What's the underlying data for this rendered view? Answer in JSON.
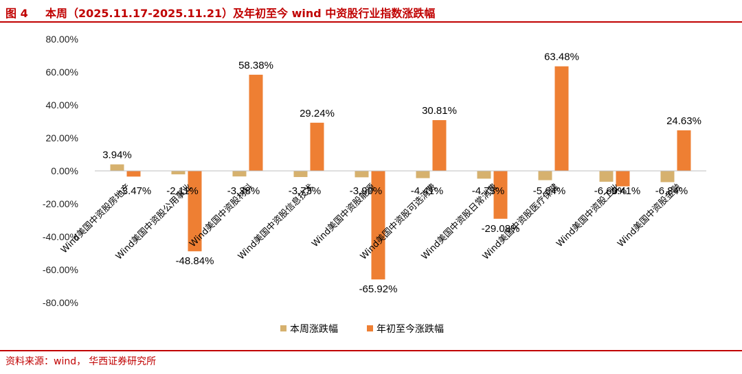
{
  "header": {
    "figure_number": "图 4",
    "title": "本周（2025.11.17-2025.11.21）及年初至今 wind 中资股行业指数涨跌幅"
  },
  "footer": {
    "source_label": "资料来源：wind，",
    "source_value": "华西证券研究所"
  },
  "colors": {
    "weekly": "#d6b16e",
    "ytd": "#ee7f33",
    "accent": "#c00000"
  },
  "chart_data": {
    "type": "bar",
    "categories": [
      "Wind美国中资股房地产",
      "Wind美国中资股公用事业",
      "Wind美国中资股材料",
      "Wind美国中资股信息技术",
      "Wind美国中资股能源",
      "Wind美国中资股可选消费",
      "Wind美国中资股日常消费",
      "Wind美国中资股医疗保健",
      "Wind美国中资股工业",
      "Wind美国中资股金融"
    ],
    "series": [
      {
        "name": "本周涨跌幅",
        "values": [
          3.94,
          -2.11,
          -3.38,
          -3.73,
          -3.9,
          -4.41,
          -4.73,
          -5.64,
          -6.6,
          -6.84
        ]
      },
      {
        "name": "年初至今涨跌幅",
        "values": [
          -3.47,
          -48.84,
          58.38,
          29.24,
          -65.92,
          30.81,
          -29.08,
          63.48,
          -9.41,
          24.63
        ]
      }
    ],
    "ylim": [
      -80,
      80
    ],
    "y_ticks": [
      "80.00%",
      "60.00%",
      "40.00%",
      "20.00%",
      "0.00%",
      "-20.00%",
      "-40.00%",
      "-60.00%",
      "-80.00%"
    ],
    "data_labels": [
      [
        "3.94%",
        "-2.11%",
        "-3.38%",
        "-3.73%",
        "-3.90%",
        "-4.41%",
        "-4.73%",
        "-5.64%",
        "-6.60%",
        "-6.84%"
      ],
      [
        "-3.47%",
        "-48.84%",
        "58.38%",
        "29.24%",
        "-65.92%",
        "30.81%",
        "-29.08%",
        "63.48%",
        "-9.41%",
        "24.63%"
      ]
    ],
    "grid": false,
    "legend_position": "bottom-center"
  }
}
